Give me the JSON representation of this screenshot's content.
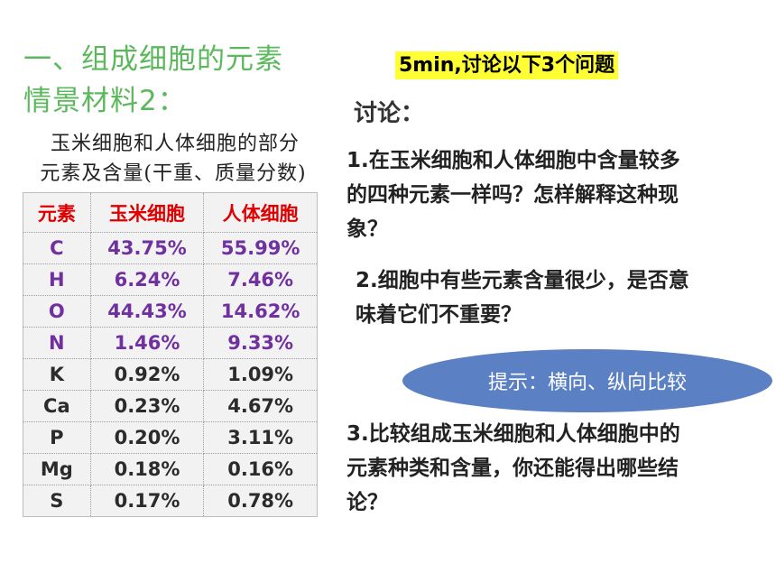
{
  "title": {
    "line1": "一、组成细胞的元素",
    "line2": "情景材料2："
  },
  "caption": {
    "line1": "玉米细胞和人体细胞的部分",
    "line2": "元素及含量(干重、质量分数)"
  },
  "table": {
    "headers": [
      "元素",
      "玉米细胞",
      "人体细胞"
    ],
    "rows": [
      [
        "C",
        "43.75%",
        "55.99%"
      ],
      [
        "H",
        "6.24%",
        "7.46%"
      ],
      [
        "O",
        "44.43%",
        "14.62%"
      ],
      [
        "N",
        "1.46%",
        "9.33%"
      ],
      [
        "K",
        "0.92%",
        "1.09%"
      ],
      [
        "Ca",
        "0.23%",
        "4.67%"
      ],
      [
        "P",
        "0.20%",
        "3.11%"
      ],
      [
        "Mg",
        "0.18%",
        "0.16%"
      ],
      [
        "S",
        "0.17%",
        "0.78%"
      ]
    ]
  },
  "badge": "5min,讨论以下3个问题",
  "discuss_label": "讨论：",
  "questions": {
    "q1": [
      "1.在玉米细胞和人体细胞中含量较多",
      "的四种元素一样吗？怎样解释这种现",
      "象？"
    ],
    "q2": [
      "2.细胞中有些元素含量很少，是否意",
      "味着它们不重要？"
    ],
    "q3": [
      "3.比较组成玉米细胞和人体细胞中的",
      "元素种类和含量，你还能得出哪些结",
      "论？"
    ]
  },
  "hint": "提示：横向、纵向比较",
  "colors": {
    "title": "#5cb85c",
    "header": "#e00000",
    "major_elements": "#7030a0",
    "badge_bg": "#ffff33",
    "bubble": "#5b80c4"
  }
}
